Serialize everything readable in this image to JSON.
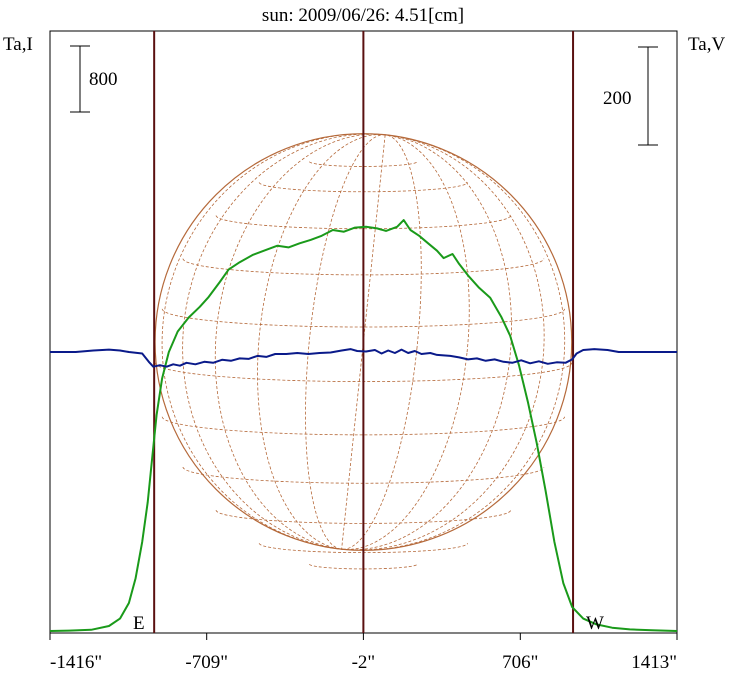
{
  "title": "sun: 2009/06/26: 4.51[cm]",
  "left_axis_label": "Ta,I",
  "right_axis_label": "Ta,V",
  "left_scale_label": "800",
  "right_scale_label": "200",
  "east_label": "E",
  "west_label": "W",
  "colors": {
    "title": "#1a2a8c",
    "intensity": "#1a9a1a",
    "polarization": "#0a1a8a",
    "sun_disk": "#b5693a",
    "vertical_lines": "#5a1010",
    "axis": "#000000"
  },
  "chart_data": {
    "type": "line",
    "title": "sun: 2009/06/26: 4.51[cm]",
    "xlabel": "",
    "ylabel_left": "Ta,I",
    "ylabel_right": "Ta,V",
    "x_ticks": [
      {
        "value": -1416,
        "label": "-1416\""
      },
      {
        "value": -709,
        "label": "-709\""
      },
      {
        "value": -2,
        "label": "-2\""
      },
      {
        "value": 706,
        "label": "706\""
      },
      {
        "value": 1413,
        "label": "1413\""
      }
    ],
    "xlim": [
      -1416,
      1413
    ],
    "scale_bars": {
      "left_I": 800,
      "right_V": 200
    },
    "vertical_lines_x": [
      -946,
      -2,
      944
    ],
    "solar_disk": {
      "center_x": -2,
      "radius_arcsec": 940
    },
    "grid": false,
    "series": [
      {
        "key": "I",
        "color": "#1a9a1a",
        "points": [
          [
            -1416,
            0
          ],
          [
            -1330,
            5
          ],
          [
            -1230,
            15
          ],
          [
            -1150,
            60
          ],
          [
            -1100,
            150
          ],
          [
            -1060,
            340
          ],
          [
            -1030,
            640
          ],
          [
            -1000,
            1080
          ],
          [
            -975,
            1560
          ],
          [
            -955,
            2100
          ],
          [
            -935,
            2620
          ],
          [
            -910,
            3060
          ],
          [
            -880,
            3380
          ],
          [
            -840,
            3630
          ],
          [
            -790,
            3800
          ],
          [
            -740,
            3930
          ],
          [
            -700,
            4050
          ],
          [
            -650,
            4230
          ],
          [
            -610,
            4380
          ],
          [
            -560,
            4470
          ],
          [
            -500,
            4560
          ],
          [
            -440,
            4620
          ],
          [
            -390,
            4670
          ],
          [
            -340,
            4650
          ],
          [
            -290,
            4700
          ],
          [
            -240,
            4740
          ],
          [
            -190,
            4790
          ],
          [
            -140,
            4860
          ],
          [
            -90,
            4840
          ],
          [
            -40,
            4890
          ],
          [
            10,
            4900
          ],
          [
            60,
            4880
          ],
          [
            100,
            4850
          ],
          [
            150,
            4900
          ],
          [
            180,
            4980
          ],
          [
            210,
            4860
          ],
          [
            250,
            4790
          ],
          [
            290,
            4700
          ],
          [
            330,
            4610
          ],
          [
            360,
            4520
          ],
          [
            400,
            4570
          ],
          [
            430,
            4450
          ],
          [
            470,
            4310
          ],
          [
            520,
            4160
          ],
          [
            570,
            4040
          ],
          [
            620,
            3810
          ],
          [
            660,
            3580
          ],
          [
            700,
            3220
          ],
          [
            740,
            2780
          ],
          [
            780,
            2280
          ],
          [
            820,
            1700
          ],
          [
            860,
            1080
          ],
          [
            900,
            580
          ],
          [
            940,
            290
          ],
          [
            990,
            150
          ],
          [
            1050,
            80
          ],
          [
            1120,
            40
          ],
          [
            1200,
            20
          ],
          [
            1300,
            10
          ],
          [
            1413,
            0
          ]
        ]
      },
      {
        "key": "V",
        "color": "#0a1a8a",
        "points": [
          [
            -1416,
            0
          ],
          [
            -1300,
            0
          ],
          [
            -1220,
            3
          ],
          [
            -1150,
            5
          ],
          [
            -1100,
            3
          ],
          [
            -1060,
            0
          ],
          [
            -1000,
            -3
          ],
          [
            -970,
            -20
          ],
          [
            -950,
            -30
          ],
          [
            -920,
            -27
          ],
          [
            -890,
            -30
          ],
          [
            -860,
            -25
          ],
          [
            -830,
            -28
          ],
          [
            -800,
            -22
          ],
          [
            -760,
            -25
          ],
          [
            -720,
            -20
          ],
          [
            -680,
            -22
          ],
          [
            -640,
            -16
          ],
          [
            -600,
            -18
          ],
          [
            -560,
            -13
          ],
          [
            -520,
            -14
          ],
          [
            -480,
            -8
          ],
          [
            -440,
            -10
          ],
          [
            -400,
            -4
          ],
          [
            -350,
            -4
          ],
          [
            -300,
            -2
          ],
          [
            -250,
            -4
          ],
          [
            -200,
            -2
          ],
          [
            -150,
            -1
          ],
          [
            -100,
            3
          ],
          [
            -60,
            6
          ],
          [
            -30,
            2
          ],
          [
            10,
            1
          ],
          [
            50,
            4
          ],
          [
            80,
            -3
          ],
          [
            110,
            3
          ],
          [
            140,
            -2
          ],
          [
            170,
            5
          ],
          [
            200,
            -2
          ],
          [
            230,
            2
          ],
          [
            260,
            -4
          ],
          [
            300,
            -2
          ],
          [
            330,
            -6
          ],
          [
            360,
            -7
          ],
          [
            390,
            -8
          ],
          [
            430,
            -11
          ],
          [
            470,
            -15
          ],
          [
            510,
            -13
          ],
          [
            550,
            -18
          ],
          [
            590,
            -15
          ],
          [
            630,
            -20
          ],
          [
            670,
            -22
          ],
          [
            710,
            -17
          ],
          [
            750,
            -23
          ],
          [
            790,
            -19
          ],
          [
            830,
            -24
          ],
          [
            870,
            -21
          ],
          [
            910,
            -22
          ],
          [
            940,
            -15
          ],
          [
            960,
            -3
          ],
          [
            990,
            4
          ],
          [
            1040,
            6
          ],
          [
            1100,
            4
          ],
          [
            1150,
            0
          ],
          [
            1250,
            0
          ],
          [
            1413,
            0
          ]
        ]
      }
    ]
  }
}
